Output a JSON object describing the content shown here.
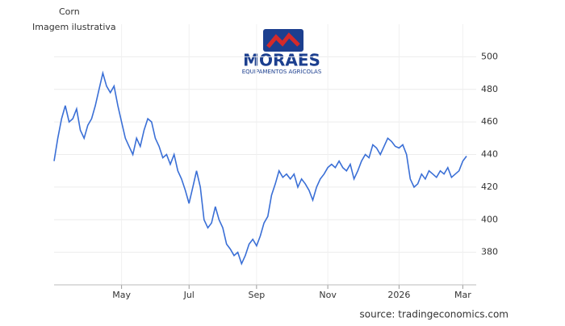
{
  "caption": "Imagem ilustrativa",
  "watermark": {
    "brand": "MORAES",
    "tagline": "EQUIPAMENTOS AGRÍCOLAS"
  },
  "chart_data": {
    "type": "line",
    "title": "Corn",
    "source": "source: tradingeconomics.com",
    "categories": [
      null,
      null,
      null,
      null,
      null,
      null,
      null,
      null,
      null,
      null,
      null,
      null,
      null,
      null,
      null,
      null,
      null,
      null,
      "May",
      null,
      null,
      null,
      null,
      null,
      null,
      null,
      null,
      null,
      null,
      null,
      null,
      null,
      null,
      null,
      null,
      null,
      "Jul",
      null,
      null,
      null,
      null,
      null,
      null,
      null,
      null,
      null,
      null,
      null,
      null,
      null,
      null,
      null,
      null,
      null,
      "Sep",
      null,
      null,
      null,
      null,
      null,
      null,
      null,
      null,
      null,
      null,
      null,
      null,
      null,
      null,
      null,
      null,
      null,
      null,
      "Nov",
      null,
      null,
      null,
      null,
      null,
      null,
      null,
      null,
      null,
      null,
      null,
      null,
      null,
      null,
      null,
      null,
      null,
      null,
      "2026",
      null,
      null,
      null,
      null,
      null,
      null,
      null,
      null,
      null,
      null,
      null,
      null,
      null,
      null,
      null,
      null,
      "Mar",
      null
    ],
    "series": [
      {
        "name": "Corn",
        "color": "#3a6fd6",
        "values": [
          436,
          450,
          462,
          470,
          460,
          462,
          468,
          455,
          450,
          458,
          462,
          470,
          480,
          490,
          482,
          478,
          482,
          470,
          460,
          450,
          445,
          440,
          450,
          445,
          455,
          462,
          460,
          450,
          445,
          438,
          440,
          434,
          440,
          430,
          425,
          418,
          410,
          420,
          430,
          420,
          400,
          395,
          398,
          408,
          400,
          395,
          385,
          382,
          378,
          380,
          373,
          378,
          385,
          388,
          384,
          390,
          398,
          402,
          415,
          422,
          430,
          426,
          428,
          425,
          428,
          420,
          425,
          422,
          418,
          412,
          420,
          425,
          428,
          432,
          434,
          432,
          436,
          432,
          430,
          434,
          425,
          430,
          436,
          440,
          438,
          446,
          444,
          440,
          445,
          450,
          448,
          445,
          444,
          446,
          440,
          425,
          420,
          422,
          428,
          425,
          430,
          428,
          426,
          430,
          428,
          432,
          426,
          428,
          430,
          436,
          439
        ]
      }
    ],
    "ylim": [
      360,
      520
    ],
    "yticks": [
      380,
      400,
      420,
      440,
      460,
      480,
      500
    ],
    "grid": true
  }
}
